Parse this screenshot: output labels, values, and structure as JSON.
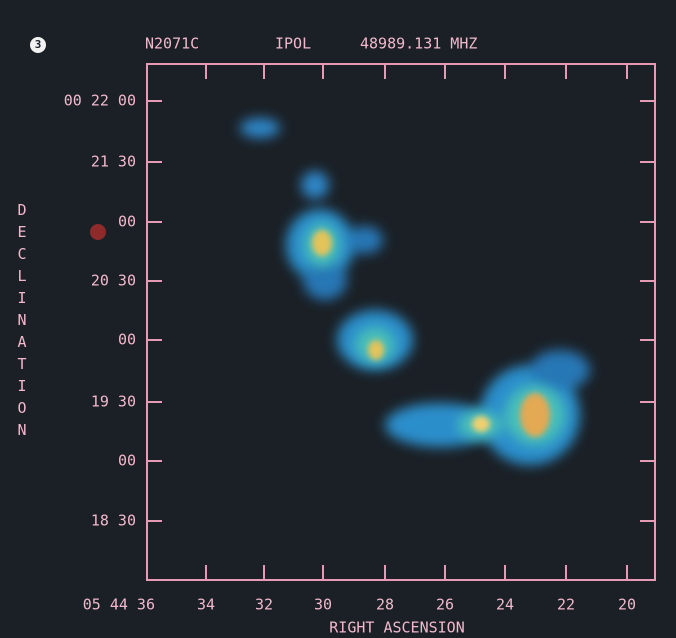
{
  "header": {
    "label": "3",
    "source": "N2071C",
    "polarization": "IPOL",
    "frequency": "48989.131 MHZ"
  },
  "y_axis": {
    "title": "DECLINATION",
    "ticks": [
      "00 22 00",
      "21 30",
      "00",
      "20 30",
      "00",
      "19 30",
      "00",
      "18 30"
    ]
  },
  "x_axis": {
    "title": "RIGHT ASCENSION",
    "ticks": [
      "05 44 36",
      "34",
      "32",
      "30",
      "28",
      "26",
      "24",
      "22",
      "20"
    ]
  }
}
